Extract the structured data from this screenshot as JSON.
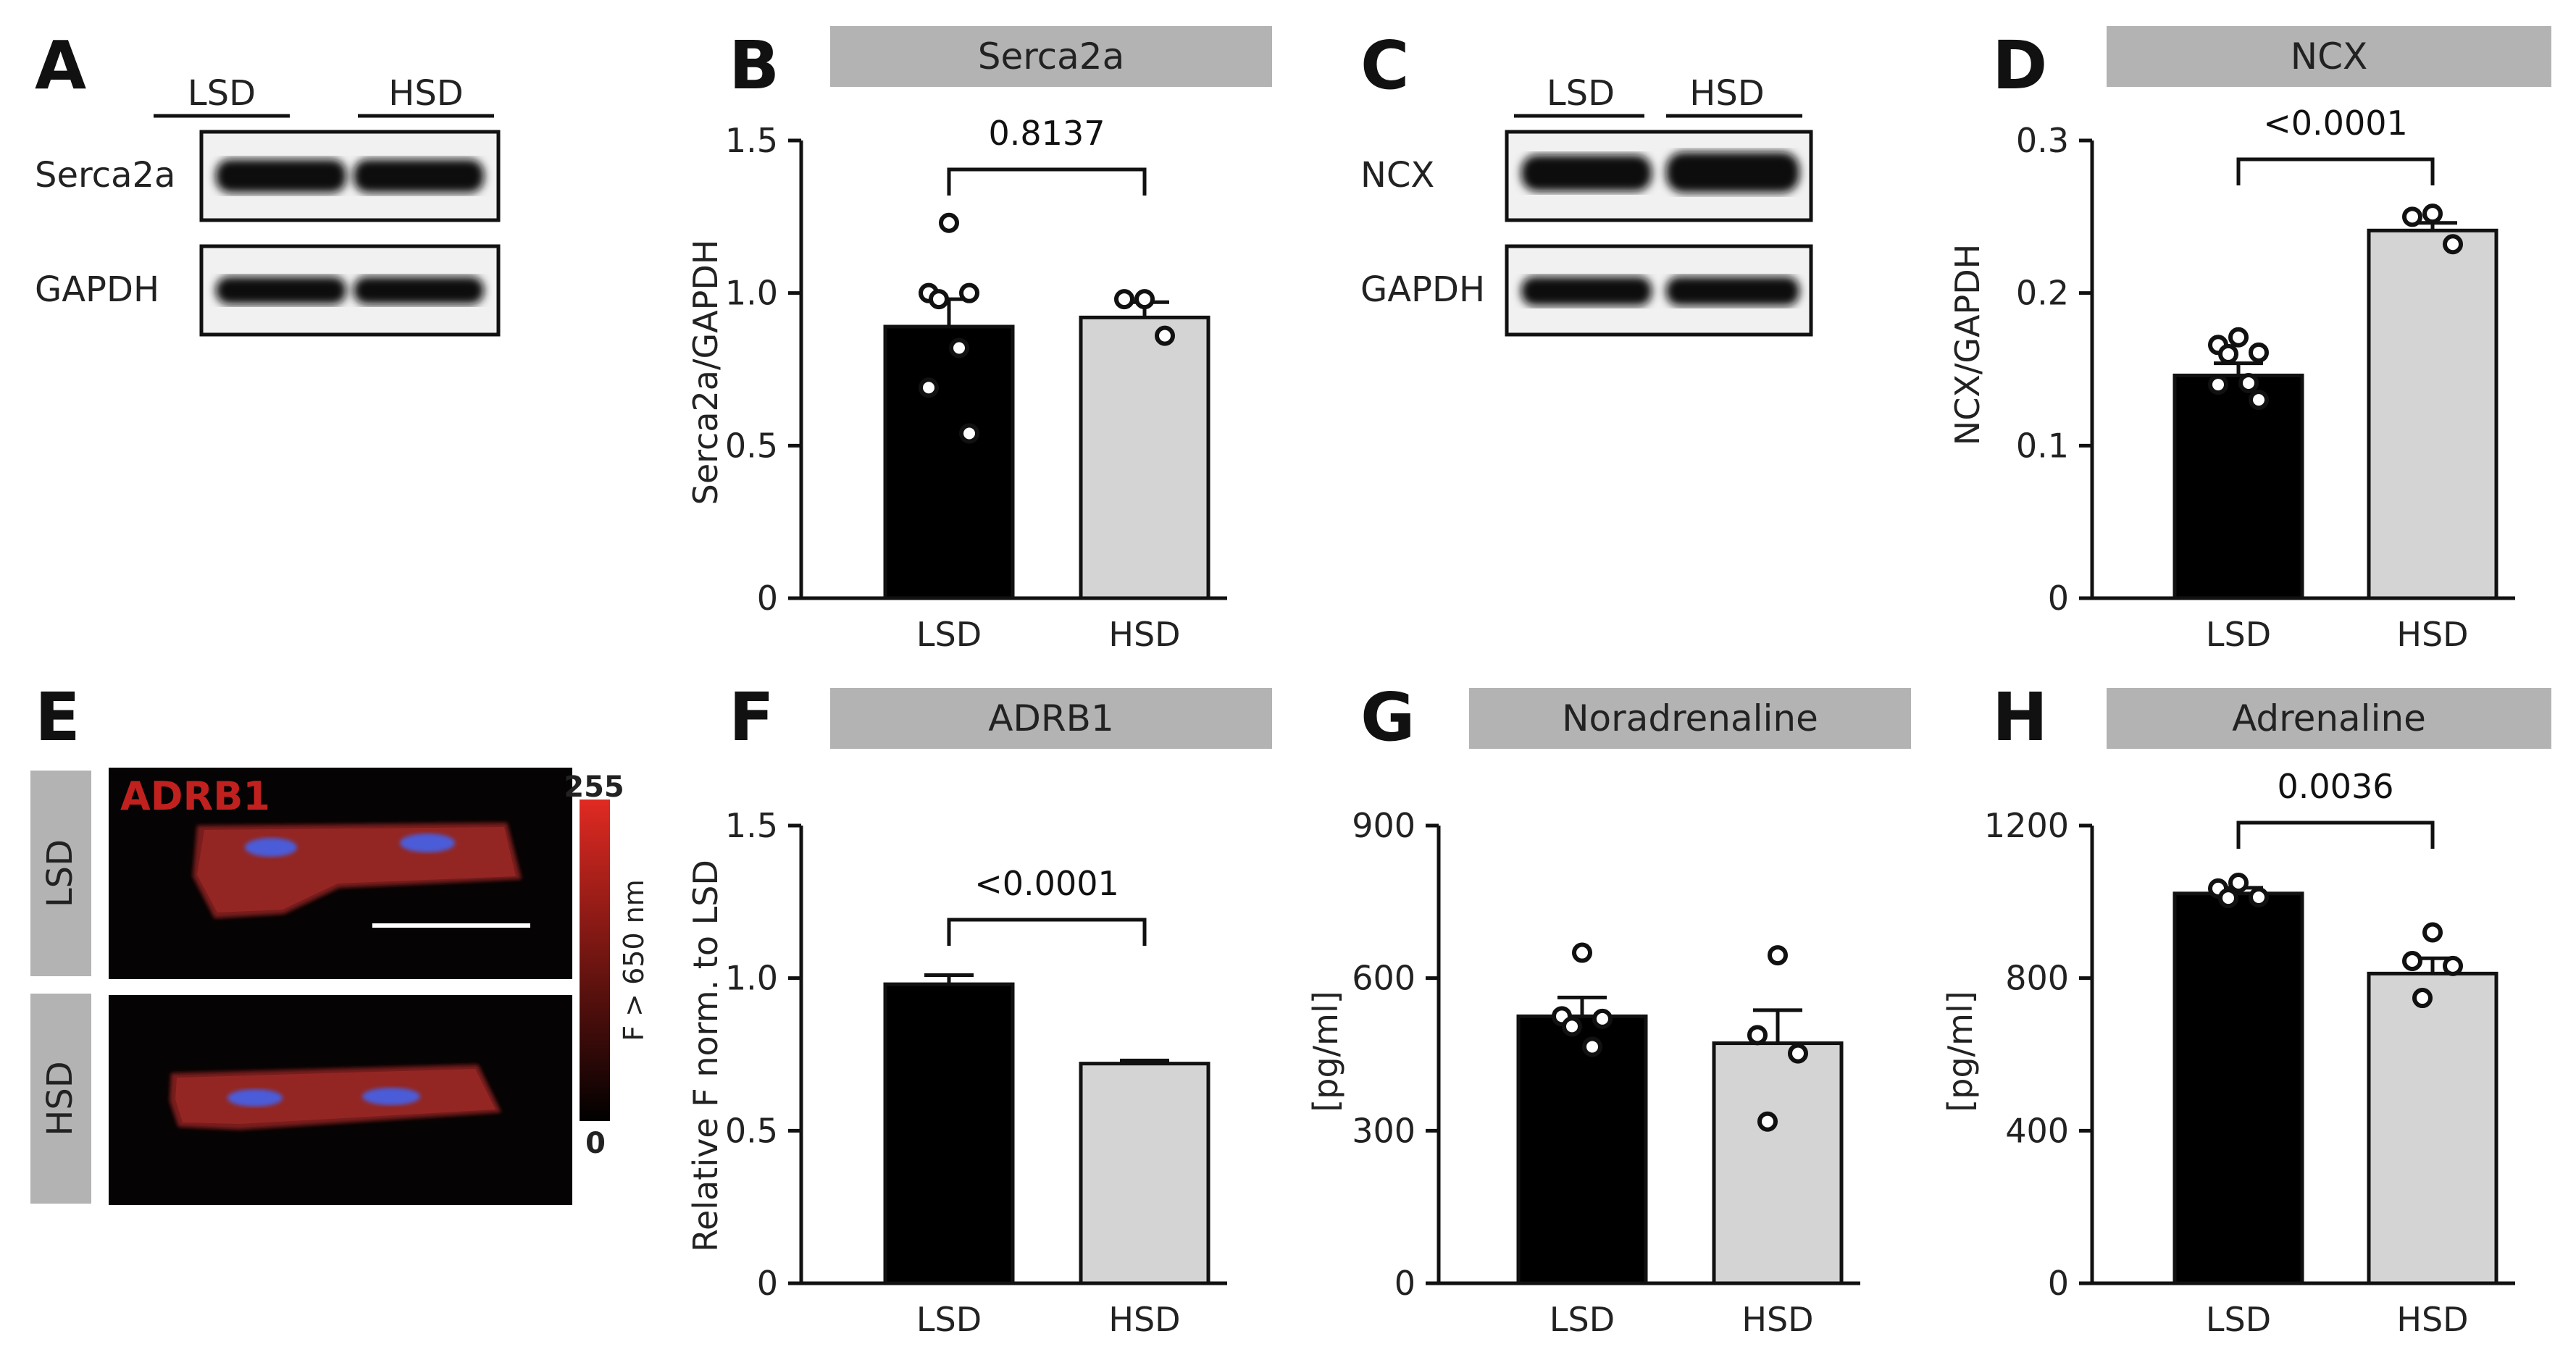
{
  "colors": {
    "lsd_bar": "#000000",
    "hsd_bar": "#d4d4d4",
    "title_box": "#b3b3b3",
    "stain": "#c0211f",
    "nuclei": "#4b5bd8"
  },
  "blots": [
    {
      "panel": "A",
      "groups": [
        "LSD",
        "HSD"
      ],
      "rows": [
        "Serca2a",
        "GAPDH"
      ]
    },
    {
      "panel": "C",
      "groups": [
        "LSD",
        "HSD"
      ],
      "rows": [
        "NCX",
        "GAPDH"
      ]
    }
  ],
  "imaging": {
    "panel": "E",
    "stain_label": "ADRB1",
    "rows": [
      "LSD",
      "HSD"
    ],
    "colorbar": {
      "max": "255",
      "min": "0",
      "label": "F > 650 nm"
    }
  },
  "chart_data": [
    {
      "panel": "B",
      "type": "bar",
      "title": "Serca2a",
      "categories": [
        "LSD",
        "HSD"
      ],
      "values": [
        0.89,
        0.92
      ],
      "errors": [
        0.09,
        0.05
      ],
      "points": [
        [
          1.23,
          1.0,
          1.0,
          0.98,
          0.82,
          0.69,
          0.54
        ],
        [
          0.98,
          0.98,
          0.86
        ]
      ],
      "ylabel": "Serca2a/GAPDH",
      "ylim": [
        0,
        1.5
      ],
      "yticks": [
        0,
        0.5,
        1.0,
        1.5
      ],
      "ytick_labels": [
        "0",
        "0.5",
        "1.0",
        "1.5"
      ],
      "pvalue": "0.8137"
    },
    {
      "panel": "D",
      "type": "bar",
      "title": "NCX",
      "categories": [
        "LSD",
        "HSD"
      ],
      "values": [
        0.146,
        0.241
      ],
      "errors": [
        0.008,
        0.005
      ],
      "points": [
        [
          0.171,
          0.166,
          0.161,
          0.16,
          0.141,
          0.14,
          0.13
        ],
        [
          0.252,
          0.25,
          0.232
        ]
      ],
      "ylabel": "NCX/GAPDH",
      "ylim": [
        0,
        0.3
      ],
      "yticks": [
        0,
        0.1,
        0.2,
        0.3
      ],
      "ytick_labels": [
        "0",
        "0.1",
        "0.2",
        "0.3"
      ],
      "pvalue": "<0.0001"
    },
    {
      "panel": "F",
      "type": "bar",
      "title": "ADRB1",
      "categories": [
        "LSD",
        "HSD"
      ],
      "values": [
        0.98,
        0.72
      ],
      "errors": [
        0.03,
        0.01
      ],
      "points": [
        [],
        []
      ],
      "ylabel": "Relative F norm. to LSD",
      "ylim": [
        0,
        1.5
      ],
      "yticks": [
        0,
        0.5,
        1.0,
        1.5
      ],
      "ytick_labels": [
        "0",
        "0.5",
        "1.0",
        "1.5"
      ],
      "pvalue": "<0.0001"
    },
    {
      "panel": "G",
      "type": "bar",
      "title": "Noradrenaline",
      "categories": [
        "LSD",
        "HSD"
      ],
      "values": [
        525,
        472
      ],
      "errors": [
        37,
        65
      ],
      "points": [
        [
          650,
          525,
          520,
          505,
          465
        ],
        [
          645,
          488,
          452,
          318
        ]
      ],
      "ylabel": "[pg/ml]",
      "ylim": [
        0,
        900
      ],
      "yticks": [
        0,
        300,
        600,
        900
      ],
      "ytick_labels": [
        "0",
        "300",
        "600",
        "900"
      ],
      "pvalue": ""
    },
    {
      "panel": "H",
      "type": "bar",
      "title": "Adrenaline",
      "categories": [
        "LSD",
        "HSD"
      ],
      "values": [
        1022,
        812
      ],
      "errors": [
        15,
        40
      ],
      "points": [
        [
          1050,
          1035,
          1012,
          1010
        ],
        [
          920,
          845,
          832,
          748
        ]
      ],
      "ylabel": "[pg/ml]",
      "ylim": [
        0,
        1200
      ],
      "yticks": [
        0,
        400,
        800,
        1200
      ],
      "ytick_labels": [
        "0",
        "400",
        "800",
        "1200"
      ],
      "pvalue": "0.0036"
    }
  ]
}
